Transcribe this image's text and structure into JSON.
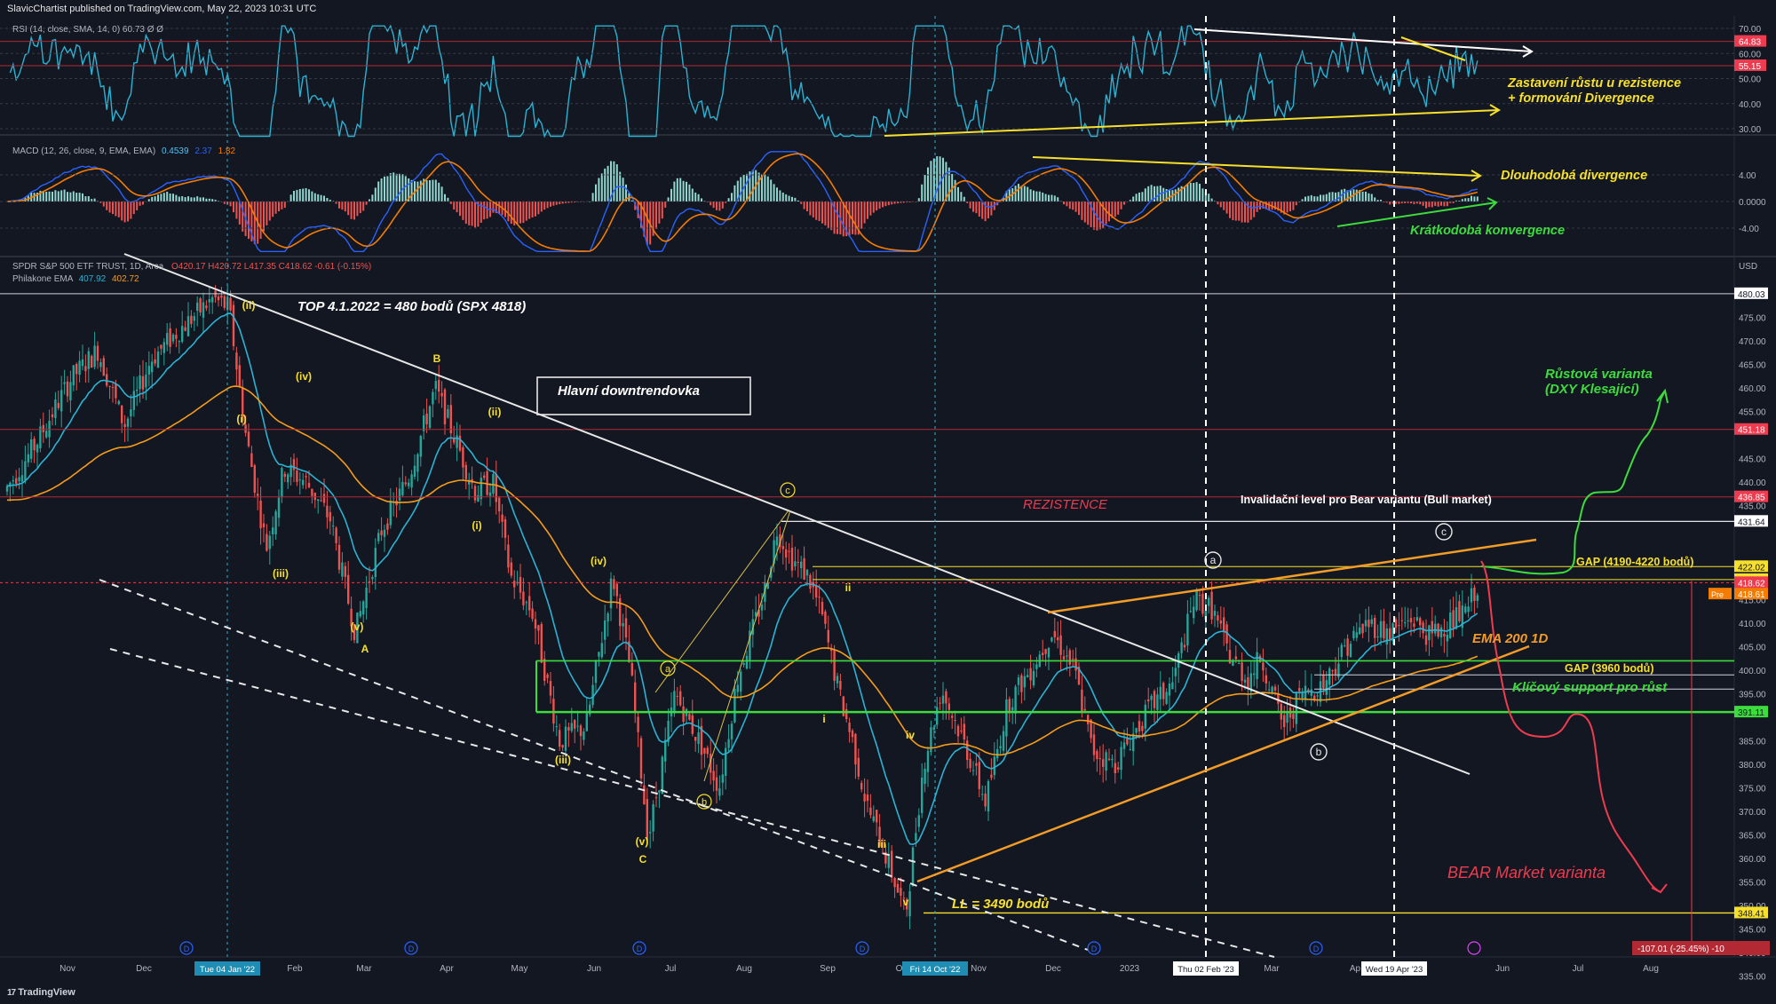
{
  "published_by": "SlavicChartist published on TradingView.com, May 22, 2023 10:31 UTC",
  "footer_brand": "TradingView",
  "colors": {
    "background": "#131722",
    "rsi": "#2ab3d3",
    "macd_line": "#2962ff",
    "signal_line": "#f57c00",
    "ema_fast": "#2ab3d3",
    "ema_slow": "#f59c1a",
    "up": "#26a69a",
    "down": "#ef5350",
    "annot_yellow": "#f7e02c",
    "annot_green": "#3ddc3d",
    "annot_red": "#ef3b4f",
    "orange_line": "#f39c28"
  },
  "rsi_panel": {
    "header": "RSI (14, close, SMA, 14, 0)  60.73  Ø  Ø",
    "axis_ticks": [
      "70.00",
      "60.00",
      "50.00",
      "40.00",
      "30.00"
    ],
    "value_labels": [
      {
        "text": "64.83",
        "color": "#ef3b4f"
      },
      {
        "text": "55.15",
        "color": "#ef3b4f"
      }
    ],
    "annotation": [
      "Zastavení růstu u rezistence",
      "+ formování Divergence"
    ]
  },
  "macd_panel": {
    "header": "MACD (12, 26, close, 9, EMA, EMA)",
    "values": [
      "0.4539",
      "2.37",
      "1.82"
    ],
    "axis_ticks": [
      "4.00",
      "0.0000",
      "-4.00"
    ],
    "annotation_long": "Dlouhodobá divergence",
    "annotation_short": "Krátkodobá konvergence"
  },
  "main_panel": {
    "header_symbol": "SPDR S&P 500 ETF TRUST, 1D, Arca",
    "header_ohlc": "O420.17  H420.72  L417.35  C418.62  -0.61 (-0.15%)",
    "ema_label": "Philakone EMA",
    "ema_values": [
      "407.92",
      "402.72"
    ],
    "currency": "USD",
    "axis_ticks": [
      "475.00",
      "470.00",
      "465.00",
      "460.00",
      "455.00",
      "445.00",
      "440.00",
      "435.00",
      "415.00",
      "410.00",
      "405.00",
      "400.00",
      "395.00",
      "385.00",
      "380.00",
      "375.00",
      "370.00",
      "365.00",
      "360.00",
      "355.00",
      "350.00",
      "345.00",
      "340.00",
      "335.00"
    ],
    "price_labels": [
      {
        "text": "480.03",
        "bg": "#ffffff",
        "fg": "#131722",
        "value": 480.03
      },
      {
        "text": "451.18",
        "bg": "#ef3b4f",
        "fg": "#ffffff",
        "value": 451.18
      },
      {
        "text": "436.85",
        "bg": "#ef3b4f",
        "fg": "#ffffff",
        "value": 436.85
      },
      {
        "text": "431.64",
        "bg": "#ffffff",
        "fg": "#131722",
        "value": 431.64
      },
      {
        "text": "422.02",
        "bg": "#f7e02c",
        "fg": "#131722",
        "value": 422.02
      },
      {
        "text": "419.26",
        "bg": "#f7e02c",
        "fg": "#131722",
        "value": 419.26
      },
      {
        "text": "418.62",
        "bg": "#ef3b4f",
        "fg": "#ffffff",
        "value": 418.62
      },
      {
        "text": "391.11",
        "bg": "#3ddc3d",
        "fg": "#131722",
        "value": 391.11
      },
      {
        "text": "348.41",
        "bg": "#f7e02c",
        "fg": "#131722",
        "value": 348.41
      }
    ],
    "pre_label": "Pre",
    "pre_value": "418.61",
    "bottom_change": "-107.01 (-25.45%) -10",
    "annotations": {
      "top": "TOP 4.1.2022 = 480 bodů (SPX 4818)",
      "downtrend_box": "Hlavní downtrendovka",
      "resistance": "REZISTENCE",
      "invalidation": "Invalidační level pro Bear variantu (Bull market)",
      "gap_top": "GAP (4190-4220 bodů)",
      "ema200": "EMA 200 1D",
      "gap_mid": "GAP (3960 bodů)",
      "key_support": "Klíčový support pro růst",
      "growth_variant": [
        "Růstová varianta",
        "(DXY Klesající)"
      ],
      "bear_variant": "BEAR Market varianta",
      "ll": "LL = 3490 bodů"
    },
    "wave_labels": [
      "(ii)",
      "(iv)",
      "(i)",
      "(iii)",
      "(v)",
      "A",
      "B",
      "(ii)",
      "(i)",
      "(iv)",
      "(iii)",
      "(v)",
      "C",
      "a",
      "b",
      "c",
      "ii",
      "i",
      "iv",
      "iii",
      "v"
    ],
    "circled_labels": [
      "a",
      "b",
      "c"
    ]
  },
  "time_axis": {
    "labels": [
      "Nov",
      "Dec",
      "Feb",
      "Mar",
      "Apr",
      "May",
      "Jun",
      "Jul",
      "Aug",
      "Sep",
      "Oc",
      "Nov",
      "Dec",
      "2023",
      "Mar",
      "Ap",
      "Jun",
      "Jul",
      "Aug"
    ],
    "highlighted": [
      "Tue 04 Jan '22",
      "Fri 14 Oct '22",
      "Thu 02 Feb '23",
      "Wed 19 Apr '23"
    ]
  },
  "chart_data": {
    "type": "line",
    "title": "",
    "xlabel": "",
    "ylabel": "USD",
    "ylim": [
      335,
      483
    ],
    "series": [
      {
        "name": "SPDR S&P 500 ETF TRUST",
        "x": [
          "2021-11",
          "2021-12",
          "2022-01-04",
          "2022-01",
          "2022-02",
          "2022-03",
          "2022-03-29",
          "2022-04",
          "2022-05",
          "2022-06-16",
          "2022-07",
          "2022-08-16",
          "2022-09",
          "2022-10-14",
          "2022-11",
          "2022-12",
          "2023-01",
          "2023-02-02",
          "2023-03-13",
          "2023-04-19",
          "2023-05-19"
        ],
        "values": [
          452,
          462,
          479,
          451,
          434,
          418,
          462,
          440,
          395,
          362,
          375,
          430,
          392,
          348,
          395,
          405,
          385,
          416,
          382,
          412,
          420
        ]
      },
      {
        "name": "Philakone EMA",
        "x": [
          "2021-11",
          "2022-01",
          "2022-03",
          "2022-05",
          "2022-06",
          "2022-08",
          "2022-10",
          "2022-12",
          "2023-02",
          "2023-04",
          "2023-05"
        ],
        "values": [
          440,
          465,
          430,
          420,
          390,
          410,
          385,
          395,
          395,
          402,
          408
        ]
      },
      {
        "name": "EMA 200 1D",
        "x": [
          "2021-11",
          "2022-01",
          "2022-03",
          "2022-05",
          "2022-07",
          "2022-09",
          "2022-11",
          "2023-01",
          "2023-03",
          "2023-05"
        ],
        "values": [
          420,
          433,
          438,
          435,
          425,
          414,
          405,
          398,
          399,
          403
        ]
      }
    ],
    "rsi_range": [
      25,
      73
    ],
    "macd_range": [
      -6,
      7
    ]
  }
}
